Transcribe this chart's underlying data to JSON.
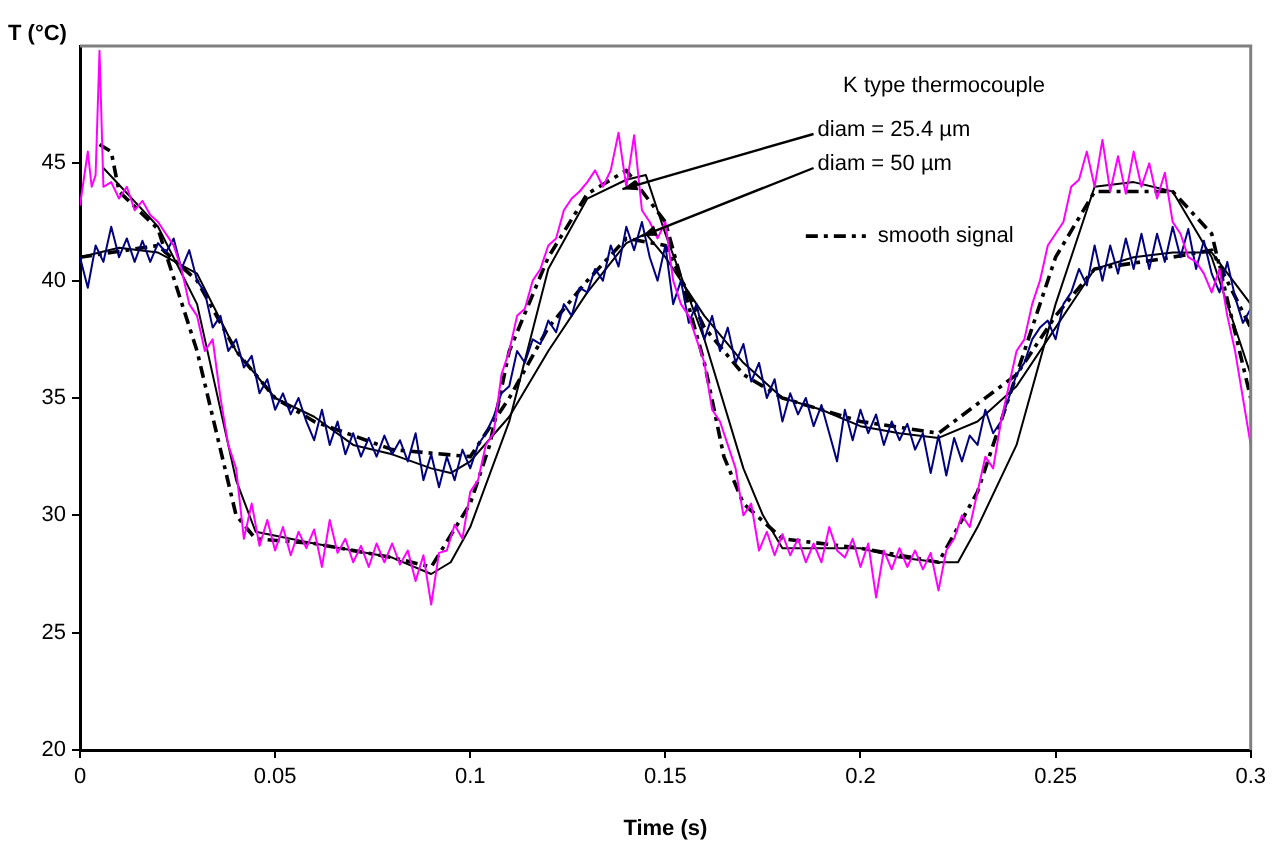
{
  "chart_data": {
    "type": "line",
    "xlabel": "Time (s)",
    "ylabel": "T (°C)",
    "xlim": [
      0,
      0.3
    ],
    "xticks": [
      0,
      0.05,
      0.1,
      0.15,
      0.2,
      0.25,
      0.3
    ],
    "ylim": [
      20,
      50
    ],
    "yticks": [
      20,
      25,
      30,
      35,
      40,
      45
    ],
    "grid": false,
    "legend": "top",
    "marker": "none",
    "annotations": [
      "K type thermocouple",
      {
        "text": "diam = 25.4 µm",
        "x": 0.139,
        "y": 43.9
      },
      {
        "text": "diam = 50 µm",
        "x": 0.144,
        "y": 41.9
      }
    ],
    "series": [
      {
        "color": "#ff00ff",
        "x": [
          0,
          0.002,
          0.003,
          0.004,
          0.005,
          0.006,
          0.008,
          0.01,
          0.012,
          0.014,
          0.016,
          0.018,
          0.02,
          0.022,
          0.024,
          0.026,
          0.028,
          0.03,
          0.032,
          0.034,
          0.036,
          0.038,
          0.04,
          0.042,
          0.044,
          0.046,
          0.048,
          0.05,
          0.052,
          0.054,
          0.056,
          0.058,
          0.06,
          0.062,
          0.064,
          0.066,
          0.068,
          0.07,
          0.072,
          0.074,
          0.076,
          0.078,
          0.08,
          0.082,
          0.084,
          0.086,
          0.088,
          0.09,
          0.092,
          0.094,
          0.096,
          0.098,
          0.1,
          0.102,
          0.104,
          0.106,
          0.108,
          0.11,
          0.112,
          0.114,
          0.116,
          0.118,
          0.12,
          0.122,
          0.124,
          0.126,
          0.128,
          0.13,
          0.132,
          0.134,
          0.136,
          0.138,
          0.14,
          0.142,
          0.144,
          0.146,
          0.148,
          0.15,
          0.152,
          0.154,
          0.156,
          0.158,
          0.16,
          0.162,
          0.164,
          0.166,
          0.168,
          0.17,
          0.172,
          0.174,
          0.176,
          0.178,
          0.18,
          0.182,
          0.184,
          0.186,
          0.188,
          0.19,
          0.192,
          0.194,
          0.196,
          0.198,
          0.2,
          0.202,
          0.204,
          0.206,
          0.208,
          0.21,
          0.212,
          0.214,
          0.216,
          0.218,
          0.22,
          0.222,
          0.224,
          0.226,
          0.228,
          0.23,
          0.232,
          0.234,
          0.236,
          0.238,
          0.24,
          0.242,
          0.244,
          0.246,
          0.248,
          0.25,
          0.252,
          0.254,
          0.256,
          0.258,
          0.26,
          0.262,
          0.264,
          0.266,
          0.268,
          0.27,
          0.272,
          0.274,
          0.276,
          0.278,
          0.28,
          0.282,
          0.284,
          0.286,
          0.288,
          0.29,
          0.292,
          0.294,
          0.296,
          0.298,
          0.3
        ],
        "values": [
          43.2,
          45.5,
          44,
          44.5,
          49.8,
          44,
          44.2,
          43.5,
          44,
          43,
          43.4,
          42.8,
          42.5,
          42,
          41.5,
          40.5,
          39,
          38.5,
          37,
          37.5,
          35,
          33,
          32,
          29,
          30.5,
          28.7,
          29.8,
          28.5,
          29.5,
          28.3,
          29.3,
          28.6,
          29.4,
          27.8,
          29.8,
          28.4,
          29,
          28,
          28.7,
          27.8,
          28.8,
          28,
          28.8,
          27.9,
          28.5,
          27.2,
          28.3,
          26.2,
          28.4,
          28.5,
          29.6,
          29,
          31,
          31.5,
          33,
          33.5,
          36,
          37,
          38.5,
          38.8,
          40,
          40.5,
          41.5,
          41.8,
          43,
          43.5,
          43.8,
          44.2,
          44.7,
          44,
          44.7,
          46.3,
          44,
          46.2,
          43,
          42.5,
          41.8,
          42.5,
          40,
          39,
          38.5,
          37.5,
          36.5,
          34.5,
          34,
          33,
          32,
          30,
          30.5,
          28.5,
          29.3,
          28.3,
          29.2,
          28.3,
          29,
          28,
          28.8,
          28,
          29.5,
          28.5,
          28.2,
          29,
          27.8,
          28.8,
          26.5,
          28.5,
          27.7,
          28.6,
          27.8,
          28.5,
          27.7,
          28.4,
          26.8,
          28.5,
          29,
          30,
          29.5,
          31,
          32.5,
          32,
          34,
          35.5,
          37,
          37.5,
          39,
          40,
          41.5,
          42,
          42.5,
          44,
          44.3,
          45.5,
          44,
          46,
          43.8,
          45.3,
          43.7,
          45.5,
          44,
          45,
          43.5,
          44.6,
          42.5,
          42,
          41,
          40.8,
          40.3,
          39.5,
          40.5,
          38.5,
          37,
          35,
          33
        ]
      },
      {
        "color": "#000080",
        "x": [
          0,
          0.002,
          0.004,
          0.006,
          0.008,
          0.01,
          0.012,
          0.014,
          0.016,
          0.018,
          0.02,
          0.022,
          0.024,
          0.026,
          0.028,
          0.03,
          0.032,
          0.034,
          0.036,
          0.038,
          0.04,
          0.042,
          0.044,
          0.046,
          0.048,
          0.05,
          0.052,
          0.054,
          0.056,
          0.058,
          0.06,
          0.062,
          0.064,
          0.066,
          0.068,
          0.07,
          0.072,
          0.074,
          0.076,
          0.078,
          0.08,
          0.082,
          0.084,
          0.086,
          0.088,
          0.09,
          0.092,
          0.094,
          0.096,
          0.098,
          0.1,
          0.102,
          0.104,
          0.106,
          0.108,
          0.11,
          0.112,
          0.114,
          0.116,
          0.118,
          0.12,
          0.122,
          0.124,
          0.126,
          0.128,
          0.13,
          0.132,
          0.134,
          0.136,
          0.138,
          0.14,
          0.142,
          0.144,
          0.146,
          0.148,
          0.15,
          0.152,
          0.154,
          0.156,
          0.158,
          0.16,
          0.162,
          0.164,
          0.166,
          0.168,
          0.17,
          0.172,
          0.174,
          0.176,
          0.178,
          0.18,
          0.182,
          0.184,
          0.186,
          0.188,
          0.19,
          0.192,
          0.194,
          0.196,
          0.198,
          0.2,
          0.202,
          0.204,
          0.206,
          0.208,
          0.21,
          0.212,
          0.214,
          0.216,
          0.218,
          0.22,
          0.222,
          0.224,
          0.226,
          0.228,
          0.23,
          0.232,
          0.234,
          0.236,
          0.238,
          0.24,
          0.242,
          0.244,
          0.246,
          0.248,
          0.25,
          0.252,
          0.254,
          0.256,
          0.258,
          0.26,
          0.262,
          0.264,
          0.266,
          0.268,
          0.27,
          0.272,
          0.274,
          0.276,
          0.278,
          0.28,
          0.282,
          0.284,
          0.286,
          0.288,
          0.29,
          0.292,
          0.294,
          0.296,
          0.298,
          0.3
        ],
        "values": [
          41,
          39.7,
          41.5,
          40.8,
          42.3,
          41,
          41.8,
          40.8,
          41.7,
          40.8,
          41.6,
          41.2,
          41.8,
          40.5,
          41.3,
          40,
          39.5,
          38,
          38.5,
          37,
          37.5,
          36.3,
          36.8,
          35.2,
          35.8,
          34.5,
          35.2,
          34.3,
          35,
          34,
          33.2,
          34.5,
          33,
          34,
          32.6,
          33.5,
          32.5,
          33.3,
          32.5,
          33.4,
          32.6,
          33.2,
          32.3,
          33.5,
          31.5,
          32.6,
          31.2,
          32.5,
          31.5,
          32.8,
          32,
          33,
          33.5,
          34.2,
          35.2,
          35.5,
          37,
          36.5,
          37.5,
          37.3,
          38.3,
          37.8,
          39,
          38.5,
          39.7,
          39.5,
          40.5,
          40,
          41.5,
          40.6,
          42.3,
          41.3,
          42.5,
          41,
          40,
          41.5,
          39,
          40,
          38.2,
          39,
          37.5,
          38.5,
          37,
          38,
          36.5,
          37.3,
          35.7,
          36.5,
          35,
          35.8,
          34,
          35.2,
          34.3,
          35,
          33.8,
          34.7,
          33.5,
          32.3,
          34.5,
          33.2,
          34.5,
          33.5,
          34.3,
          33,
          34,
          33.2,
          33.9,
          32.8,
          33.5,
          31.8,
          33.4,
          31.7,
          33.3,
          32.3,
          33.4,
          33,
          34.5,
          33.5,
          34,
          35,
          36,
          36.5,
          37.5,
          38,
          38.3,
          37.5,
          39,
          39.5,
          40.5,
          39.8,
          41.5,
          40,
          41.5,
          40.3,
          41.8,
          40.5,
          42,
          40.5,
          42,
          40.8,
          42.3,
          41,
          42.2,
          40.5,
          41.7,
          40.3,
          39.5,
          40.8,
          39.3,
          38.2,
          38.8
        ]
      },
      {
        "color": "#000000",
        "x": [
          0.006,
          0.02,
          0.03,
          0.04,
          0.045,
          0.06,
          0.07,
          0.08,
          0.09,
          0.095,
          0.1,
          0.11,
          0.12,
          0.13,
          0.14,
          0.145,
          0.15,
          0.16,
          0.17,
          0.175,
          0.18,
          0.19,
          0.2,
          0.21,
          0.22,
          0.225,
          0.23,
          0.24,
          0.25,
          0.26,
          0.27,
          0.28,
          0.29,
          0.3
        ],
        "values": [
          44.8,
          42.3,
          39,
          31.5,
          29.3,
          28.8,
          28.5,
          28.2,
          27.5,
          28,
          29.5,
          34,
          40.5,
          43.5,
          44.3,
          44.5,
          42,
          37.5,
          32,
          30,
          28.6,
          28.6,
          28.6,
          28.2,
          28,
          28,
          29.5,
          33,
          39,
          44,
          44.2,
          43.8,
          41,
          36
        ]
      },
      {
        "color": "#000000",
        "x": [
          0,
          0.01,
          0.02,
          0.03,
          0.04,
          0.05,
          0.06,
          0.07,
          0.08,
          0.09,
          0.095,
          0.1,
          0.11,
          0.12,
          0.13,
          0.14,
          0.145,
          0.15,
          0.16,
          0.17,
          0.18,
          0.19,
          0.2,
          0.21,
          0.22,
          0.23,
          0.24,
          0.25,
          0.26,
          0.27,
          0.28,
          0.29,
          0.3
        ],
        "values": [
          41,
          41.4,
          41.2,
          40.3,
          37,
          35,
          34.2,
          33,
          32.6,
          32,
          31.8,
          32.3,
          34.2,
          37,
          39.5,
          41.6,
          42,
          41,
          38.5,
          36.5,
          35,
          34.5,
          33.8,
          33.5,
          33.3,
          34,
          35.5,
          38,
          40.5,
          41,
          41.2,
          41.2,
          39
        ]
      },
      {
        "name": "smooth signal",
        "color": "#000000",
        "line_style": "dashed",
        "x": [
          0.005,
          0.008,
          0.01,
          0.02,
          0.03,
          0.035,
          0.04,
          0.045,
          0.06,
          0.08,
          0.09,
          0.1,
          0.105,
          0.11,
          0.12,
          0.13,
          0.14,
          0.15,
          0.16,
          0.165,
          0.17,
          0.18,
          0.2,
          0.22,
          0.23,
          0.24,
          0.25,
          0.26,
          0.28,
          0.29,
          0.3
        ],
        "values": [
          45.8,
          45.5,
          43.8,
          42.2,
          37,
          33.5,
          30,
          29,
          28.8,
          28.2,
          27.8,
          30.5,
          33,
          37,
          41,
          43.7,
          44.7,
          42.5,
          36.5,
          32.5,
          30.5,
          29,
          28.6,
          28,
          31,
          36,
          41,
          43.8,
          43.8,
          42,
          35
        ]
      },
      {
        "color": "#000000",
        "line_style": "dashed",
        "x": [
          0,
          0.02,
          0.03,
          0.04,
          0.05,
          0.06,
          0.08,
          0.1,
          0.11,
          0.12,
          0.13,
          0.14,
          0.15,
          0.16,
          0.17,
          0.18,
          0.2,
          0.22,
          0.24,
          0.25,
          0.26,
          0.28,
          0.29,
          0.3
        ],
        "values": [
          41,
          41.5,
          40,
          37,
          35,
          34,
          32.8,
          32.5,
          35,
          38,
          40,
          41.8,
          41.5,
          38,
          36,
          35,
          34,
          33.5,
          36,
          38.5,
          40.5,
          41,
          41.3,
          38
        ]
      }
    ]
  }
}
